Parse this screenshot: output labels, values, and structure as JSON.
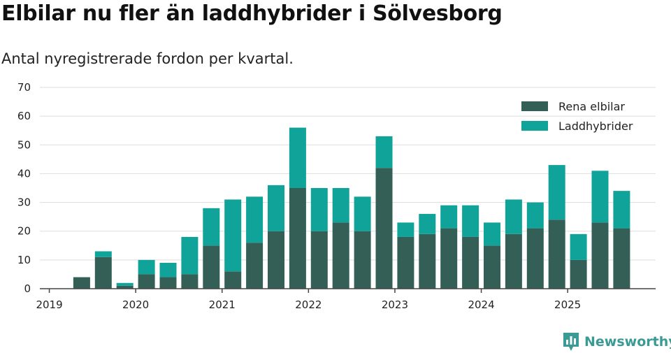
{
  "chart_data": {
    "type": "bar",
    "stacked": true,
    "title": "Elbilar nu fler än laddhybrider i Sölvesborg",
    "subtitle": "Antal nyregistrerade fordon per kvartal.",
    "xlabel": "",
    "ylabel": "",
    "ylim": [
      0,
      70
    ],
    "yticks": [
      0,
      10,
      20,
      30,
      40,
      50,
      60,
      70
    ],
    "grid": true,
    "legend_position": "top-right",
    "x_tick_labels": [
      "2019",
      "2020",
      "2021",
      "2022",
      "2023",
      "2024",
      "2025"
    ],
    "categories": [
      "2019 Q1",
      "2019 Q2",
      "2019 Q3",
      "2019 Q4",
      "2020 Q1",
      "2020 Q2",
      "2020 Q3",
      "2020 Q4",
      "2021 Q1",
      "2021 Q2",
      "2021 Q3",
      "2021 Q4",
      "2022 Q1",
      "2022 Q2",
      "2022 Q3",
      "2022 Q4",
      "2023 Q1",
      "2023 Q2",
      "2023 Q3",
      "2023 Q4",
      "2024 Q1",
      "2024 Q2",
      "2024 Q3",
      "2024 Q4",
      "2025 Q1",
      "2025 Q2",
      "2025 Q3"
    ],
    "series": [
      {
        "name": "Rena elbilar",
        "color": "#335f57",
        "values": [
          0,
          4,
          11,
          1,
          5,
          4,
          5,
          15,
          6,
          16,
          20,
          35,
          20,
          23,
          20,
          42,
          18,
          19,
          21,
          18,
          15,
          19,
          21,
          24,
          10,
          23,
          21
        ]
      },
      {
        "name": "Laddhybrider",
        "color": "#0fa39a",
        "values": [
          0,
          0,
          2,
          1,
          5,
          5,
          13,
          13,
          25,
          16,
          16,
          21,
          15,
          12,
          12,
          11,
          5,
          7,
          8,
          11,
          8,
          12,
          9,
          19,
          9,
          18,
          13
        ]
      }
    ]
  },
  "brand": {
    "name": "Newsworthy",
    "icon": "bar-chart-badge-icon",
    "color": "#3a9a94"
  }
}
